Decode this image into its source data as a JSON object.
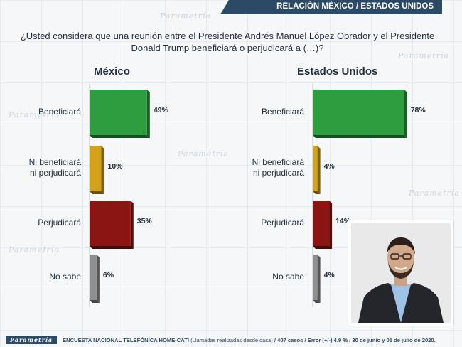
{
  "header": {
    "banner": "RELACIÓN MÉXICO / ESTADOS UNIDOS"
  },
  "question": "¿Usted considera que una reunión entre el Presidente Andrés Manuel López Obrador y el Presidente Donald Trump beneficiará o perjudicará a (…)?",
  "watermark": "Parametría",
  "chart_data": [
    {
      "type": "bar",
      "title": "México",
      "categories": [
        "Beneficiará",
        "Ni beneficiará ni perjudicará",
        "Perjudicará",
        "No sabe"
      ],
      "category_lines": [
        [
          "Beneficiará"
        ],
        [
          "Ni beneficiará",
          "ni perjudicará"
        ],
        [
          "Perjudicará"
        ],
        [
          "No sabe"
        ]
      ],
      "values": [
        49,
        10,
        35,
        6
      ],
      "value_labels": [
        "49%",
        "10%",
        "35%",
        "6%"
      ],
      "colors": [
        "#2e9d3f",
        "#d4a11a",
        "#8a1512",
        "#8f8f8f"
      ],
      "orientation": "horizontal",
      "xlim": [
        0,
        100
      ]
    },
    {
      "type": "bar",
      "title": "Estados Unidos",
      "categories": [
        "Beneficiará",
        "Ni beneficiará ni perjudicará",
        "Perjudicará",
        "No sabe"
      ],
      "category_lines": [
        [
          "Beneficiará"
        ],
        [
          "Ni beneficiará",
          "ni perjudicará"
        ],
        [
          "Perjudicará"
        ],
        [
          "No sabe"
        ]
      ],
      "values": [
        78,
        4,
        14,
        4
      ],
      "value_labels": [
        "78%",
        "4%",
        "14%",
        "4%"
      ],
      "colors": [
        "#2e9d3f",
        "#d4a11a",
        "#8a1512",
        "#8f8f8f"
      ],
      "orientation": "horizontal",
      "xlim": [
        0,
        100
      ]
    }
  ],
  "footer": {
    "logo": "Parametría",
    "survey": "ENCUESTA NACIONAL TELEFÓNICA HOME-CATI",
    "note": "(Llamadas realizadas desde casa)",
    "details": "/ 407 casos / Error (+/-) 4.9 % / 30 de junio y 01 de julio de 2020."
  }
}
